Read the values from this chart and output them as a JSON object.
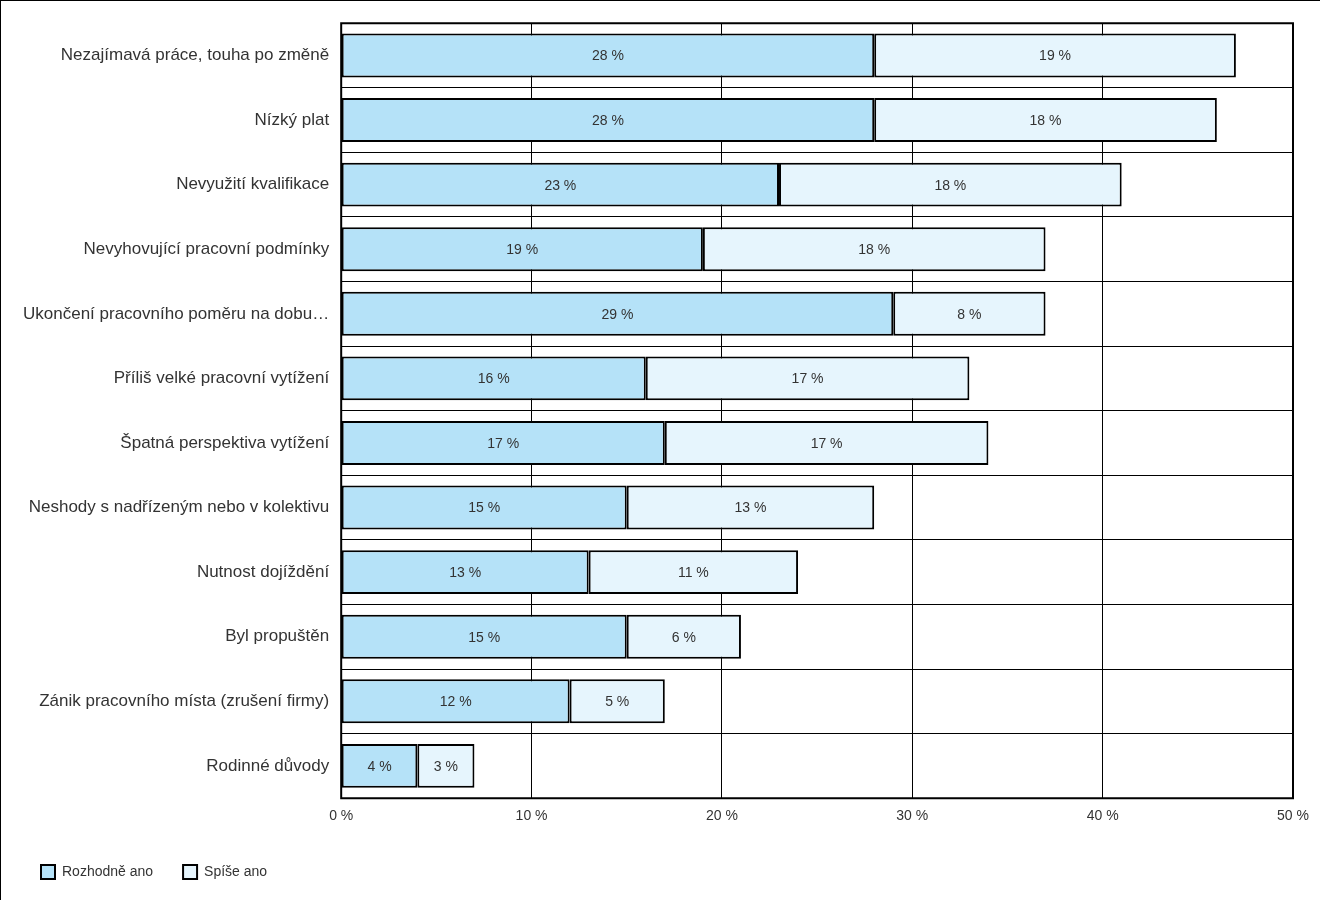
{
  "chart_data": {
    "type": "bar",
    "orientation": "horizontal",
    "stacked": true,
    "categories": [
      "Nezajímavá práce, touha po změně",
      "Nízký plat",
      "Nevyužití kvalifikace",
      "Nevyhovující pracovní podmínky",
      "Ukončení pracovního poměru na dobu…",
      "Příliš velké pracovní vytížení",
      "Špatná perspektiva vytížení",
      "Neshody s nadřízeným nebo v kolektivu",
      "Nutnost dojíždění",
      "Byl propuštěn",
      "Zánik pracovního místa (zrušení firmy)",
      "Rodinné důvody"
    ],
    "series": [
      {
        "name": "Rozhodně ano",
        "color": "#b5e2f8",
        "values": [
          28,
          28,
          23,
          19,
          29,
          16,
          17,
          15,
          13,
          15,
          12,
          4
        ],
        "value_labels": [
          "28 %",
          "28 %",
          "23 %",
          "19 %",
          "29 %",
          "16 %",
          "17 %",
          "15 %",
          "13 %",
          "15 %",
          "12 %",
          "4 %"
        ]
      },
      {
        "name": "Spíše ano",
        "color": "#e6f5fd",
        "values": [
          19,
          18,
          18,
          18,
          8,
          17,
          17,
          13,
          11,
          6,
          5,
          3
        ],
        "value_labels": [
          "19 %",
          "18 %",
          "18 %",
          "18 %",
          "8 %",
          "17 %",
          "17 %",
          "13 %",
          "11 %",
          "6 %",
          "5 %",
          "3 %"
        ]
      }
    ],
    "xlim": [
      0,
      50
    ],
    "xticks": [
      {
        "value": 0,
        "label": "0 %"
      },
      {
        "value": 10,
        "label": "10 %"
      },
      {
        "value": 20,
        "label": "20 %"
      },
      {
        "value": 30,
        "label": "30 %"
      },
      {
        "value": 40,
        "label": "40 %"
      },
      {
        "value": 50,
        "label": "50 %"
      }
    ],
    "grid": true,
    "legend": "bottom left"
  }
}
